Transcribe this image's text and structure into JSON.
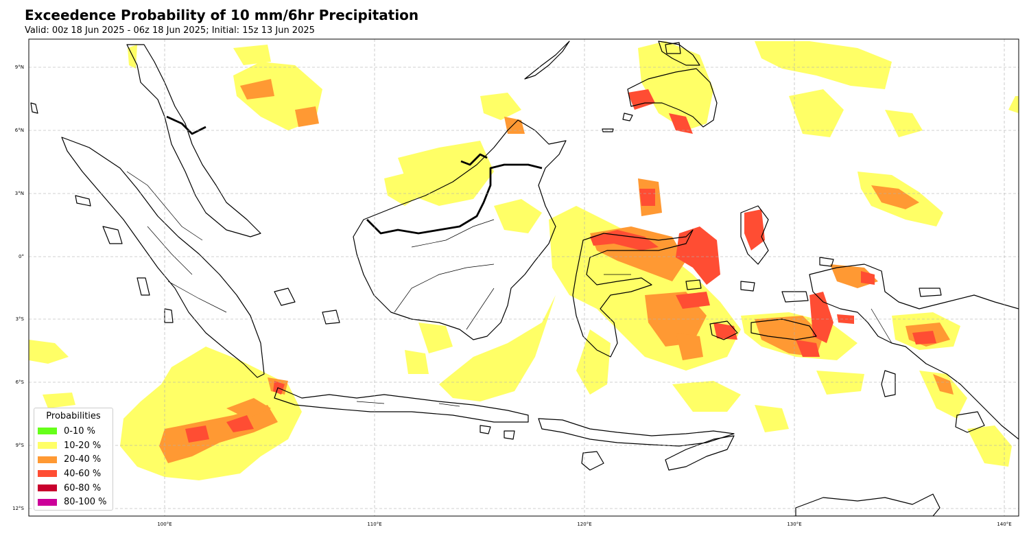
{
  "title": "Exceedence Probability of 10 mm/6hr Precipitation",
  "subtitle": "Valid: 00z 18 Jun 2025 - 06z 18 Jun 2025; Initial: 15z 13 Jun 2025",
  "axes": {
    "lat_labels": [
      "9°N",
      "6°N",
      "3°N",
      "0°",
      "3°S",
      "6°S",
      "9°S",
      "12°S"
    ],
    "lat_values": [
      9,
      6,
      3,
      0,
      -3,
      -6,
      -9,
      -12
    ],
    "lon_labels": [
      "100°E",
      "110°E",
      "120°E",
      "130°E",
      "140°E"
    ],
    "lon_values": [
      100,
      110,
      120,
      130,
      140
    ],
    "lon_range": [
      93.5,
      140.7
    ],
    "lat_range": [
      -12.5,
      10.3
    ],
    "grid": true
  },
  "legend": {
    "title": "Probabilities",
    "position": "bottom-left",
    "items": [
      {
        "label": "0-10 %",
        "color": "#66ff1a"
      },
      {
        "label": "10-20 %",
        "color": "#ffff66"
      },
      {
        "label": "20-40 %",
        "color": "#ff9933"
      },
      {
        "label": "40-60 %",
        "color": "#ff4d33"
      },
      {
        "label": "60-80 %",
        "color": "#c8002d"
      },
      {
        "label": "80-100 %",
        "color": "#cc0099"
      }
    ]
  }
}
